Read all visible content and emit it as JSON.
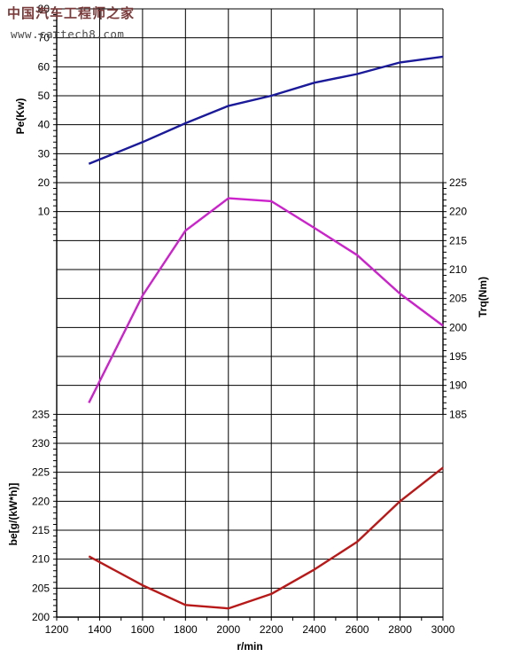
{
  "watermark": {
    "site_cn": "中国汽车工程师之家",
    "site_url": "www.cartech8.com"
  },
  "chart_data": [
    {
      "type": "line",
      "ylabel": "Pe(Kw)",
      "xlabel": "",
      "ylim": [
        0,
        80
      ],
      "yticks": [
        10,
        20,
        30,
        40,
        50,
        60,
        70,
        80
      ],
      "color": "#1a1a9a",
      "x": [
        1350,
        1600,
        1800,
        2000,
        2200,
        2400,
        2600,
        2800,
        3000
      ],
      "values": [
        26.5,
        34.0,
        40.5,
        46.5,
        50.0,
        54.5,
        57.5,
        61.5,
        63.5
      ]
    },
    {
      "type": "line",
      "ylabel": "Trq(Nm)",
      "xlabel": "",
      "ylim": [
        185,
        225
      ],
      "yticks": [
        185,
        190,
        195,
        200,
        205,
        210,
        215,
        220,
        225
      ],
      "color": "#cc22cc",
      "x": [
        1350,
        1600,
        1800,
        2000,
        2200,
        2400,
        2600,
        2800,
        3000
      ],
      "values": [
        187.0,
        205.5,
        216.7,
        222.3,
        221.8,
        217.2,
        212.5,
        205.8,
        200.3
      ]
    },
    {
      "type": "line",
      "ylabel": "be[g/(kW*h)]",
      "xlabel": "r/min",
      "ylim": [
        200,
        235
      ],
      "yticks": [
        200,
        205,
        210,
        215,
        220,
        225,
        230,
        235
      ],
      "color": "#b81818",
      "x": [
        1350,
        1600,
        1800,
        2000,
        2200,
        2400,
        2600,
        2800,
        3000
      ],
      "values": [
        210.5,
        205.5,
        202.1,
        201.5,
        204.0,
        208.2,
        213.0,
        220.0,
        225.8
      ]
    }
  ],
  "x_axis": {
    "label": "r/min",
    "ticks": [
      1200,
      1400,
      1600,
      1800,
      2000,
      2200,
      2400,
      2600,
      2800,
      3000
    ],
    "range": [
      1200,
      3000
    ]
  }
}
